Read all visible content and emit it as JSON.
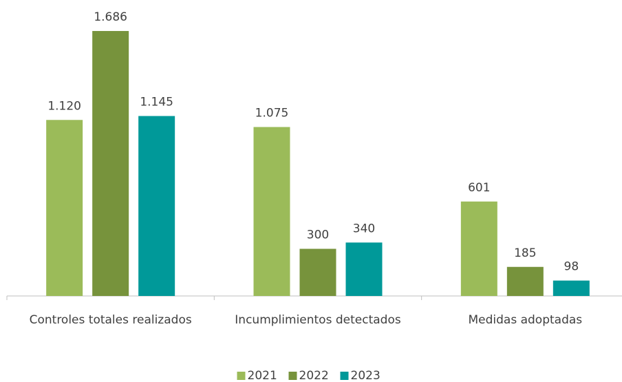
{
  "chart_data": {
    "type": "bar",
    "categories": [
      "Controles totales realizados",
      "Incumplimientos detectados",
      "Medidas adoptadas"
    ],
    "series": [
      {
        "name": "2021",
        "color": "#9bbb59",
        "values": [
          1120,
          1075,
          601
        ],
        "value_labels": [
          "1.120",
          "1.075",
          "601"
        ]
      },
      {
        "name": "2022",
        "color": "#77933c",
        "values": [
          1686,
          300,
          185
        ],
        "value_labels": [
          "1.686",
          "300",
          "185"
        ]
      },
      {
        "name": "2023",
        "color": "#009999",
        "values": [
          1145,
          340,
          98
        ],
        "value_labels": [
          "1.145",
          "340",
          "98"
        ]
      }
    ],
    "ylim": [
      0,
      1800
    ],
    "legend": "bottom"
  }
}
